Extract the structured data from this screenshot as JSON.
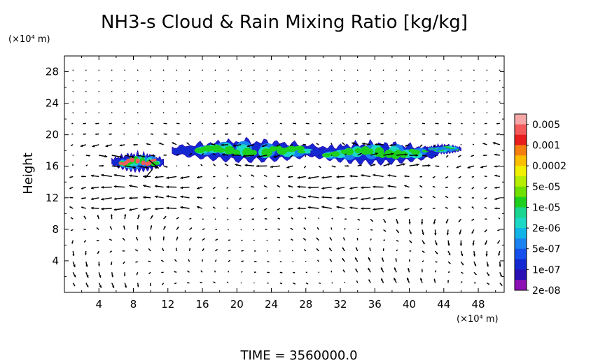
{
  "chart_data": {
    "type": "heatmap",
    "title": "NH3-s Cloud & Rain Mixing Ratio [kg/kg]",
    "ylabel": "Height",
    "y_unit": "(×10⁴ m)",
    "x_unit": "(×10⁴ m)",
    "xlim": [
      0,
      51
    ],
    "ylim": [
      0,
      30
    ],
    "x_ticks": [
      "4",
      "8",
      "12",
      "16",
      "20",
      "24",
      "28",
      "32",
      "36",
      "40",
      "44",
      "48"
    ],
    "y_ticks": [
      "4",
      "8",
      "12",
      "16",
      "20",
      "24",
      "28"
    ],
    "footer": "TIME = 3560000.0",
    "colorbar": {
      "labels": [
        "0.005",
        "0.001",
        "0.0002",
        "5e-05",
        "1e-05",
        "2e-06",
        "5e-07",
        "1e-07",
        "2e-08"
      ],
      "colors": [
        "#f6a8a8",
        "#f45a5a",
        "#e81d1d",
        "#f57e10",
        "#fcbf00",
        "#f0f000",
        "#b5ee00",
        "#6fe000",
        "#1ed01e",
        "#19d590",
        "#1cd8c4",
        "#12b4e8",
        "#1a82f0",
        "#1650ec",
        "#1428d2",
        "#2a10b4",
        "#8c10b4"
      ]
    },
    "cloud_regions": [
      {
        "x_range": [
          5.5,
          11.5
        ],
        "y_range": [
          15.3,
          17.8
        ],
        "peak": "0.001"
      },
      {
        "x_range": [
          12.5,
          46
        ],
        "y_range": [
          16.3,
          19.3
        ],
        "peak": "1e-05"
      }
    ],
    "wind_vectors": true
  }
}
